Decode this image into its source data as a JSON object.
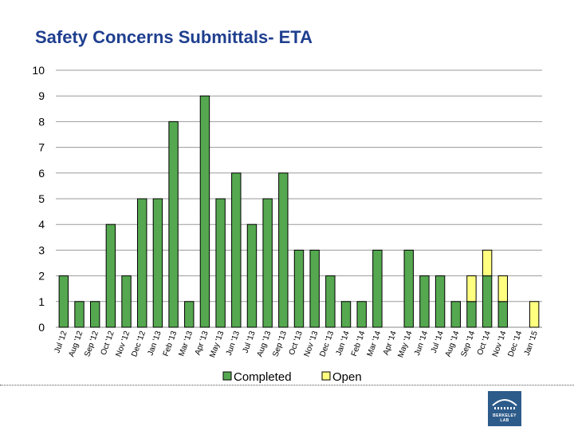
{
  "chart_data": {
    "type": "bar",
    "title": "Safety Concerns Submittals- ETA",
    "xlabel": "",
    "ylabel": "",
    "ylim": [
      0,
      10
    ],
    "yticks": [
      0,
      1,
      2,
      3,
      4,
      5,
      6,
      7,
      8,
      9,
      10
    ],
    "stacked": true,
    "grid": true,
    "legend": "bottom",
    "categories": [
      "Jul '12",
      "Aug '12",
      "Sep '12",
      "Oct '12",
      "Nov '12",
      "Dec '12",
      "Jan '13",
      "Feb '13",
      "Mar '13",
      "Apr '13",
      "May '13",
      "Jun '13",
      "Jul '13",
      "Aug '13",
      "Sep '13",
      "Oct '13",
      "Nov '13",
      "Dec '13",
      "Jan '14",
      "Feb '14",
      "Mar '14",
      "Apr '14",
      "May '14",
      "Jun '14",
      "Jul '14",
      "Aug '14",
      "Sep '14",
      "Oct '14",
      "Nov '14",
      "Dec '14",
      "Jan '15"
    ],
    "series": [
      {
        "name": "Completed",
        "color": "#55a84f",
        "values": [
          2,
          1,
          1,
          4,
          2,
          5,
          5,
          8,
          1,
          9,
          5,
          6,
          4,
          5,
          6,
          3,
          3,
          2,
          1,
          1,
          3,
          0,
          3,
          2,
          2,
          1,
          1,
          2,
          1,
          0,
          0
        ]
      },
      {
        "name": "Open",
        "color": "#ffff80",
        "values": [
          0,
          0,
          0,
          0,
          0,
          0,
          0,
          0,
          0,
          0,
          0,
          0,
          0,
          0,
          0,
          0,
          0,
          0,
          0,
          0,
          0,
          0,
          0,
          0,
          0,
          0,
          1,
          1,
          1,
          0,
          1
        ]
      }
    ]
  },
  "logo": {
    "text": "BERKELEY LAB"
  }
}
